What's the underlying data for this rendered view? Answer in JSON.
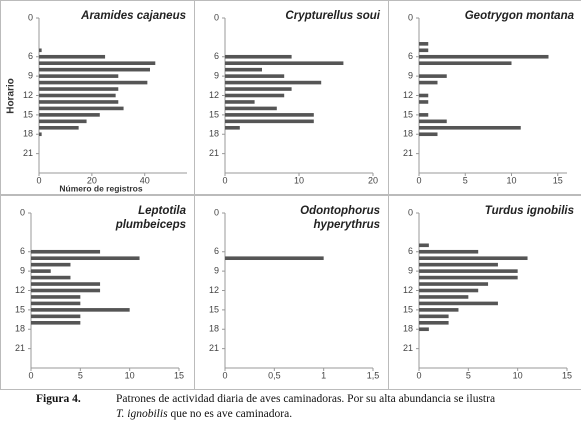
{
  "chart_data": [
    {
      "type": "hbar",
      "title": "Aramides cajaneus",
      "ylabel": "Horario",
      "xlabel": "Número de registros",
      "y": [
        5,
        6,
        7,
        8,
        9,
        10,
        11,
        12,
        13,
        14,
        15,
        16,
        17,
        18
      ],
      "values": [
        1,
        25,
        44,
        42,
        30,
        41,
        30,
        29,
        30,
        32,
        23,
        18,
        15,
        1
      ],
      "xlim": [
        0,
        56
      ],
      "xticks": [
        0,
        20,
        40
      ],
      "ylim": [
        0,
        24
      ],
      "yticks": [
        0,
        6,
        9,
        12,
        15,
        18,
        21
      ],
      "color": "#555555"
    },
    {
      "type": "hbar",
      "title": "Crypturellus soui",
      "y": [
        6,
        7,
        8,
        9,
        10,
        11,
        12,
        13,
        14,
        15,
        16,
        17
      ],
      "values": [
        9,
        16,
        5,
        8,
        13,
        9,
        8,
        4,
        7,
        12,
        12,
        2
      ],
      "xlim": [
        0,
        20
      ],
      "xticks": [
        0,
        10,
        20
      ],
      "ylim": [
        0,
        24
      ],
      "yticks": [
        0,
        6,
        9,
        12,
        15,
        18,
        21
      ],
      "color": "#555555"
    },
    {
      "type": "hbar",
      "title": "Geotrygon montana",
      "y": [
        4,
        5,
        6,
        7,
        9,
        10,
        12,
        13,
        15,
        16,
        17,
        18
      ],
      "values": [
        1,
        1,
        14,
        10,
        3,
        2,
        1,
        1,
        1,
        3,
        11,
        2
      ],
      "xlim": [
        0,
        16
      ],
      "xticks": [
        0,
        5,
        10,
        15
      ],
      "ylim": [
        0,
        24
      ],
      "yticks": [
        0,
        6,
        9,
        12,
        15,
        18,
        21
      ],
      "color": "#555555"
    },
    {
      "type": "hbar",
      "title": "Leptotila plumbeiceps",
      "y": [
        6,
        7,
        8,
        9,
        10,
        11,
        12,
        13,
        14,
        15,
        16,
        17
      ],
      "values": [
        7,
        11,
        4,
        2,
        4,
        7,
        7,
        5,
        5,
        10,
        5,
        5
      ],
      "xlim": [
        0,
        15
      ],
      "xticks": [
        0,
        5,
        10,
        15
      ],
      "ylim": [
        0,
        24
      ],
      "yticks": [
        0,
        6,
        9,
        12,
        15,
        18,
        21
      ],
      "color": "#555555"
    },
    {
      "type": "hbar",
      "title": "Odontophorus hyperythrus",
      "y": [
        7
      ],
      "values": [
        1
      ],
      "xlim": [
        0,
        1.5
      ],
      "xticks": [
        0,
        {
          "value": 0.5,
          "label": "0,5"
        },
        1,
        {
          "value": 1.5,
          "label": "1,5"
        }
      ],
      "ylim": [
        0,
        24
      ],
      "yticks": [
        0,
        6,
        9,
        12,
        15,
        18,
        21
      ],
      "color": "#555555"
    },
    {
      "type": "hbar",
      "title": "Turdus ignobilis",
      "y": [
        5,
        6,
        7,
        8,
        9,
        10,
        11,
        12,
        13,
        14,
        15,
        16,
        17,
        18
      ],
      "values": [
        1,
        6,
        11,
        8,
        10,
        10,
        7,
        6,
        5,
        8,
        4,
        3,
        3,
        1
      ],
      "xlim": [
        0,
        15
      ],
      "xticks": [
        0,
        5,
        10,
        15
      ],
      "ylim": [
        0,
        24
      ],
      "yticks": [
        0,
        6,
        9,
        12,
        15,
        18,
        21
      ],
      "color": "#555555"
    }
  ],
  "caption": {
    "label": "Figura 4.",
    "text": "Patrones de actividad diaria de aves caminadoras. Por su alta abundancia se ilustra",
    "italic": "T. ignobilis",
    "rest": "que no es ave caminadora."
  }
}
